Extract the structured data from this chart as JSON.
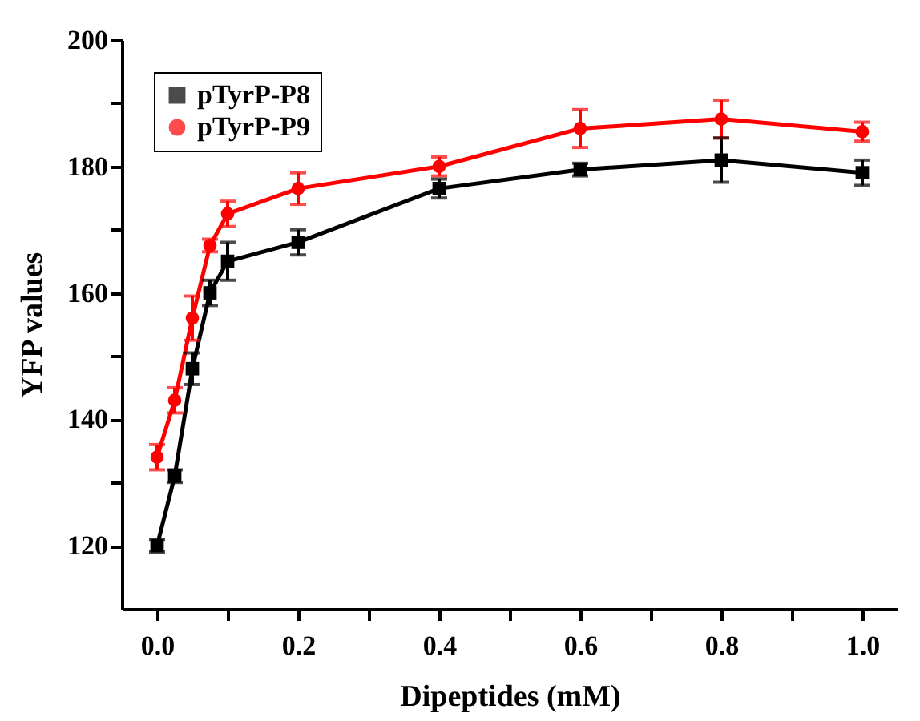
{
  "chart_data": {
    "type": "line",
    "xlabel": "Dipeptides (mM)",
    "ylabel": "YFP values",
    "x": [
      0,
      0.025,
      0.05,
      0.075,
      0.1,
      0.2,
      0.4,
      0.6,
      0.8,
      1.0
    ],
    "series": [
      {
        "name": "pTyrP-P8",
        "color": "#000000",
        "marker": "square",
        "values": [
          120,
          131,
          148,
          160,
          165,
          168,
          176.5,
          179.5,
          181,
          179
        ],
        "errors": [
          1,
          1,
          2.5,
          2,
          3,
          2,
          1.5,
          1,
          3.5,
          2
        ]
      },
      {
        "name": "pTyrP-P9",
        "color": "#ff0000",
        "marker": "circle",
        "values": [
          134,
          143,
          156,
          167.5,
          172.5,
          176.5,
          180,
          186,
          187.5,
          185.5
        ],
        "errors": [
          2,
          2,
          3.5,
          1,
          2,
          2.5,
          1.5,
          3,
          3,
          1.5
        ]
      }
    ],
    "xlim": [
      -0.05,
      1.05
    ],
    "xticks": [
      {
        "value": 0,
        "label": "0.0"
      },
      {
        "value": 0.1,
        "label": null
      },
      {
        "value": 0.2,
        "label": "0.2"
      },
      {
        "value": 0.3,
        "label": null
      },
      {
        "value": 0.4,
        "label": "0.4"
      },
      {
        "value": 0.5,
        "label": null
      },
      {
        "value": 0.6,
        "label": "0.6"
      },
      {
        "value": 0.7,
        "label": null
      },
      {
        "value": 0.8,
        "label": "0.8"
      },
      {
        "value": 0.9,
        "label": null
      },
      {
        "value": 1,
        "label": "1.0"
      }
    ],
    "ylim": [
      110,
      200
    ],
    "yticks": [
      120,
      {
        "value": 130,
        "label": null
      },
      140,
      {
        "value": 150,
        "label": null
      },
      160,
      {
        "value": 170,
        "label": null
      },
      180,
      {
        "value": 190,
        "label": null
      },
      200
    ],
    "legend": "top left",
    "grid": false,
    "line_style": "solid"
  }
}
